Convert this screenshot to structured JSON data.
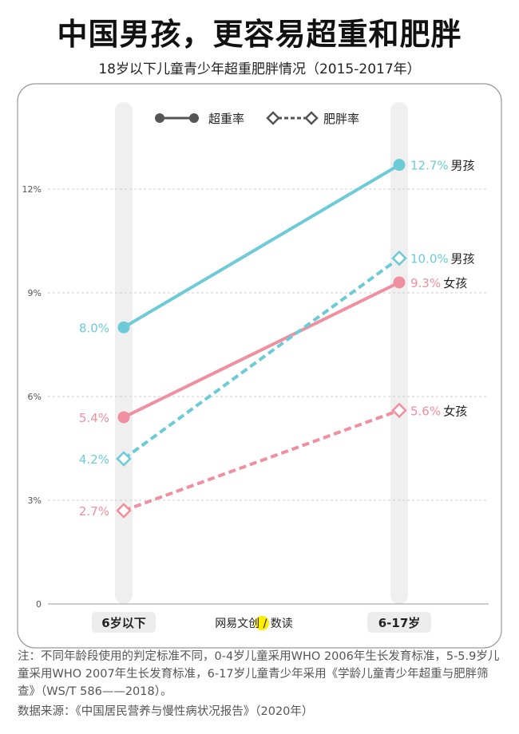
{
  "title": "中国男孩，更容易超重和肥胖",
  "subtitle": "18岁以下儿童青少年超重肥胖情况（2015-2017年）",
  "note": "注：不同年龄段使用的判定标准不同，0-4岁儿童采用WHO 2006年生长发育标准，5-5.9岁儿童采用WHO 2007年生长发育标准，6-17岁儿童青少年采用《学龄儿童青少年超重与肥胖筛查》（WS/T 586——2018）。",
  "source": "数据来源：《中国居民营养与慢性病状况报告》（2020年）",
  "watermark": "网易文创 / 数读",
  "colors": {
    "boys": "#6ccbd6",
    "girls": "#ef8fa0",
    "legend": "#555555",
    "column": "#efefef"
  },
  "chart_data": {
    "type": "line",
    "categories": [
      "6岁以下",
      "6-17岁"
    ],
    "ylim": [
      0,
      13.5
    ],
    "yticks": [
      0,
      3,
      6,
      9,
      12
    ],
    "ytick_labels": [
      "0",
      "3%",
      "6%",
      "9%",
      "12%"
    ],
    "grid": true,
    "legend": {
      "placement": "top",
      "entries": [
        {
          "label": "超重率",
          "style": "solid-circle"
        },
        {
          "label": "肥胖率",
          "style": "dashed-diamond"
        }
      ]
    },
    "series": [
      {
        "metric": "超重率",
        "group": "男孩",
        "color": "#6ccbd6",
        "style": "solid",
        "values": [
          8.0,
          12.7
        ],
        "labels": [
          "8.0%",
          "12.7%"
        ],
        "end_label": "男孩"
      },
      {
        "metric": "超重率",
        "group": "女孩",
        "color": "#ef8fa0",
        "style": "solid",
        "values": [
          5.4,
          9.3
        ],
        "labels": [
          "5.4%",
          "9.3%"
        ],
        "end_label": "女孩"
      },
      {
        "metric": "肥胖率",
        "group": "男孩",
        "color": "#6ccbd6",
        "style": "dashed",
        "values": [
          4.2,
          10.0
        ],
        "labels": [
          "4.2%",
          "10.0%"
        ],
        "end_label": "男孩"
      },
      {
        "metric": "肥胖率",
        "group": "女孩",
        "color": "#ef8fa0",
        "style": "dashed",
        "values": [
          2.7,
          5.6
        ],
        "labels": [
          "2.7%",
          "5.6%"
        ],
        "end_label": "女孩"
      }
    ]
  }
}
